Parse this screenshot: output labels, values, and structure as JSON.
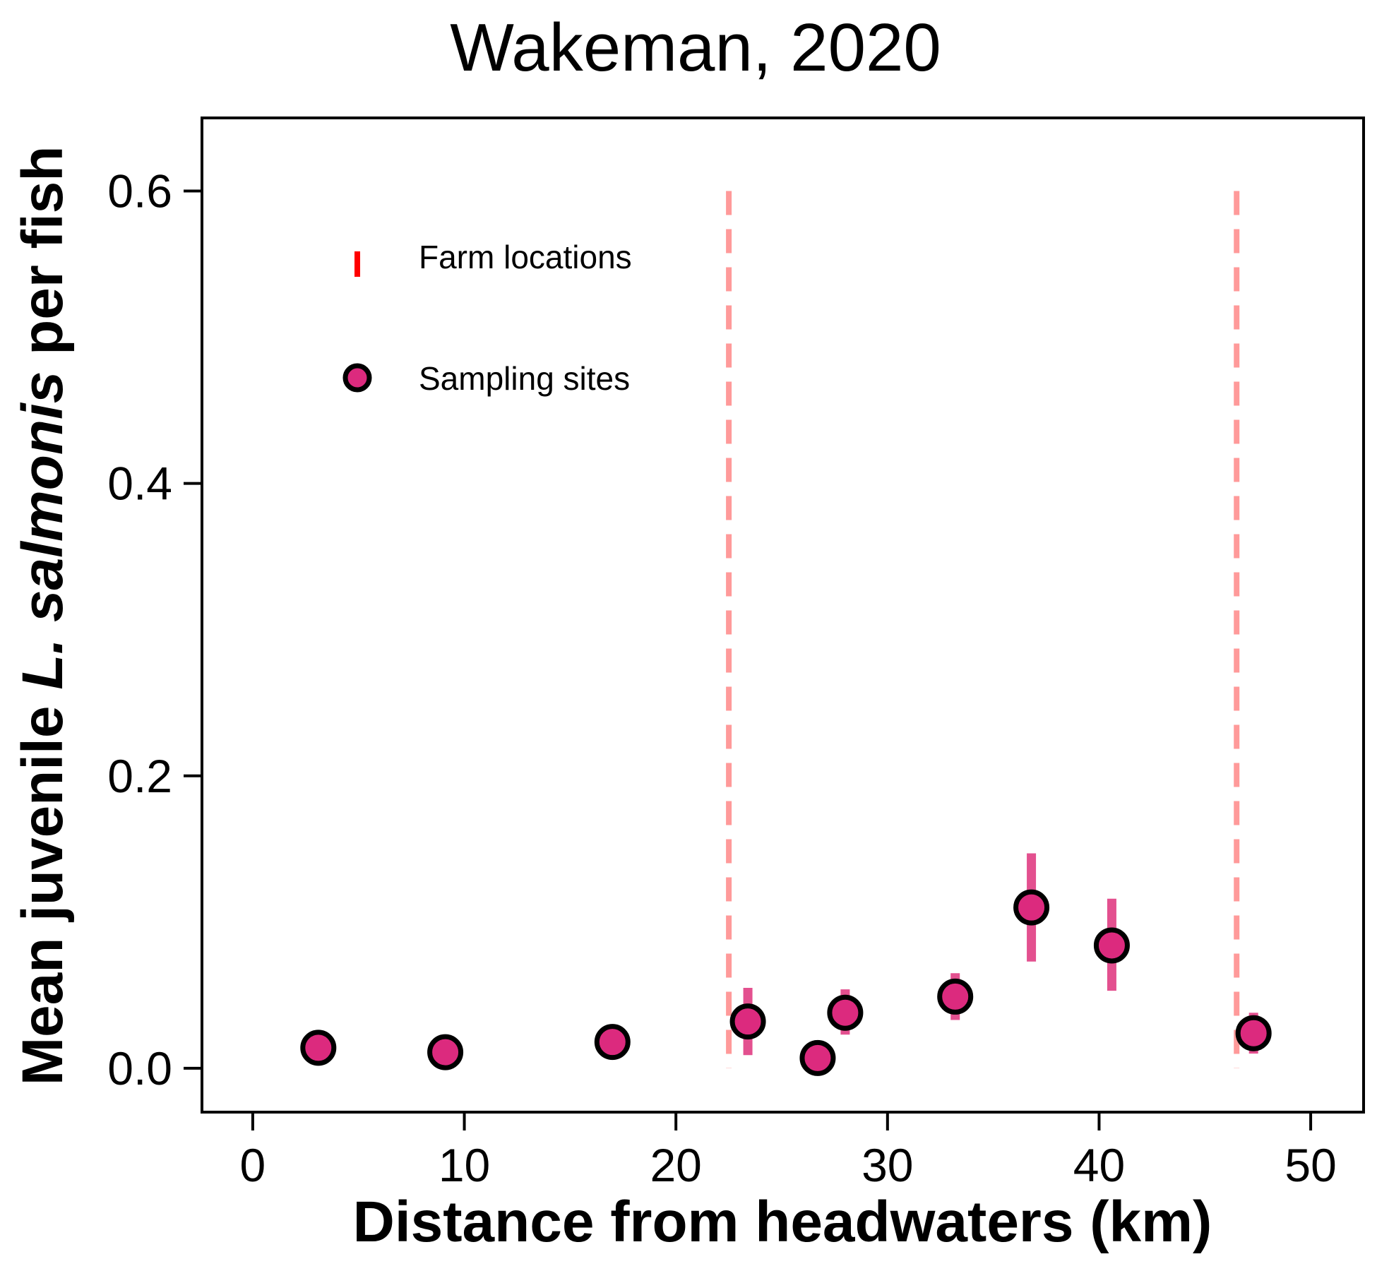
{
  "chart_data": {
    "type": "scatter",
    "title": "Wakeman, 2020",
    "xlabel": "Distance from headwaters (km)",
    "ylabel": {
      "prefix": "Mean juvenile ",
      "italic": "L. salmonis",
      "suffix": "  per fish"
    },
    "xlim": [
      -2.4,
      52.5
    ],
    "ylim": [
      -0.03,
      0.65
    ],
    "xticks": [
      0,
      10,
      20,
      30,
      40,
      50
    ],
    "xtick_labels": [
      "0",
      "10",
      "20",
      "30",
      "40",
      "50"
    ],
    "yticks": [
      0.0,
      0.2,
      0.4,
      0.6
    ],
    "ytick_labels": [
      "0.0",
      "0.2",
      "0.4",
      "0.6"
    ],
    "grid": false,
    "legend": {
      "placement": "upper-left",
      "entries": [
        {
          "label": "Farm locations",
          "marker": "red-vertical-tick"
        },
        {
          "label": "Sampling sites",
          "marker": "pink-circle"
        }
      ]
    },
    "farm_locations": [
      22.5,
      46.5
    ],
    "sampling_sites": [
      {
        "x": 3.1,
        "y": 0.014,
        "err_low": null,
        "err_high": null
      },
      {
        "x": 9.1,
        "y": 0.011,
        "err_low": null,
        "err_high": null
      },
      {
        "x": 17.0,
        "y": 0.018,
        "err_low": null,
        "err_high": null
      },
      {
        "x": 23.4,
        "y": 0.032,
        "err_low": 0.009,
        "err_high": 0.055
      },
      {
        "x": 26.7,
        "y": 0.007,
        "err_low": null,
        "err_high": null
      },
      {
        "x": 28.0,
        "y": 0.038,
        "err_low": 0.023,
        "err_high": 0.054
      },
      {
        "x": 33.2,
        "y": 0.049,
        "err_low": 0.033,
        "err_high": 0.065
      },
      {
        "x": 36.8,
        "y": 0.11,
        "err_low": 0.073,
        "err_high": 0.147
      },
      {
        "x": 40.6,
        "y": 0.084,
        "err_low": 0.053,
        "err_high": 0.116
      },
      {
        "x": 47.3,
        "y": 0.024,
        "err_low": 0.01,
        "err_high": 0.038
      }
    ],
    "colors": {
      "site_fill": "#dc2a7e",
      "site_edge": "#000000",
      "error_bar": "#e3508f",
      "farm_line": "#ff9a9a",
      "legend_farm": "#ff0000",
      "axis": "#000000"
    }
  }
}
